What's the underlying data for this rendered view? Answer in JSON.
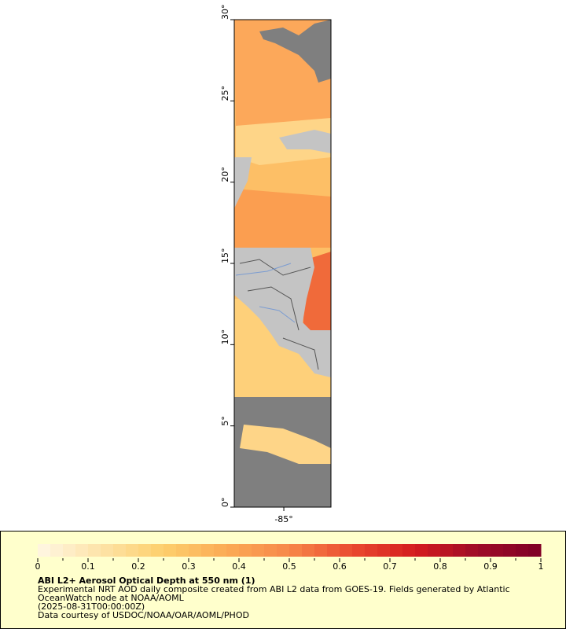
{
  "map": {
    "ylim": [
      0,
      30
    ],
    "yticks": [
      {
        "value": 0,
        "label": "0°"
      },
      {
        "value": 5,
        "label": "5°"
      },
      {
        "value": 10,
        "label": "10°"
      },
      {
        "value": 15,
        "label": "15°"
      },
      {
        "value": 20,
        "label": "20°"
      },
      {
        "value": 25,
        "label": "25°"
      },
      {
        "value": 30,
        "label": "30°"
      }
    ],
    "xlim": [
      -88.05,
      -82.1
    ],
    "xticks": [
      {
        "value": -85,
        "label": "-85°"
      }
    ]
  },
  "legend": {
    "clim": [
      0,
      1
    ],
    "ticks": [
      0,
      0.1,
      0.2,
      0.3,
      0.4,
      0.5,
      0.6,
      0.7,
      0.8,
      0.9,
      1
    ],
    "colormap": [
      "#fff7e4",
      "#fde3a8",
      "#fdcf6c",
      "#fbaa55",
      "#f7874a",
      "#ea4a30",
      "#d41c1e",
      "#9e0b28",
      "#7f0026"
    ],
    "title": "ABI L2+ Aerosol Optical Depth at 550 nm (1)",
    "lines": [
      "Experimental NRT AOD daily composite created from ABI L2 data from GOES-19. Fields generated by Atlantic",
      "OceanWatch node at NOAA/AOML",
      "(2025-08-31T00:00:00Z)",
      "Data courtesy of USDOC/NOAA/OAR/AOML/PHOD"
    ]
  }
}
